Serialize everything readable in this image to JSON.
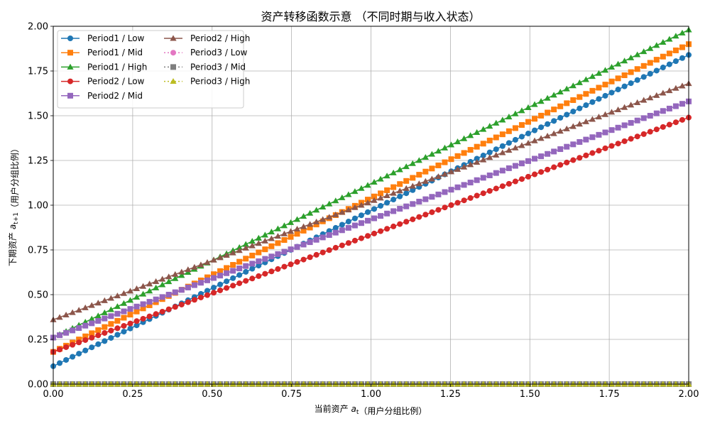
{
  "chart_data": {
    "type": "line",
    "title": "资产转移函数示意 （不同时期与收入状态）",
    "xlabel": "当前资产 a_t（用户分组比例）",
    "ylabel": "下期资产 a_{t+1}（用户分组比例）",
    "xlim": [
      0.0,
      2.0
    ],
    "ylim": [
      0.0,
      2.0
    ],
    "xticks": [
      "0.00",
      "0.25",
      "0.50",
      "0.75",
      "1.00",
      "1.25",
      "1.50",
      "1.75",
      "2.00"
    ],
    "yticks": [
      "0.00",
      "0.25",
      "0.50",
      "0.75",
      "1.00",
      "1.25",
      "1.50",
      "1.75",
      "2.00"
    ],
    "grid": true,
    "legend_position": "top-left",
    "legend_columns": 2,
    "x_range": {
      "start": 0.0,
      "end": 2.0,
      "points": 100
    },
    "series": [
      {
        "name": "Period1 / Low",
        "color": "#1f77b4",
        "marker": "circle",
        "linestyle": "solid",
        "y_at_0": 0.1,
        "y_at_2": 1.84
      },
      {
        "name": "Period1 / Mid",
        "color": "#ff7f0e",
        "marker": "square",
        "linestyle": "solid",
        "y_at_0": 0.18,
        "y_at_2": 1.9
      },
      {
        "name": "Period1 / High",
        "color": "#2ca02c",
        "marker": "triangle",
        "linestyle": "solid",
        "y_at_0": 0.26,
        "y_at_2": 1.98
      },
      {
        "name": "Period2 / Low",
        "color": "#d62728",
        "marker": "circle",
        "linestyle": "solid",
        "y_at_0": 0.18,
        "y_at_2": 1.49
      },
      {
        "name": "Period2 / Mid",
        "color": "#9467bd",
        "marker": "square",
        "linestyle": "solid",
        "y_at_0": 0.26,
        "y_at_2": 1.58
      },
      {
        "name": "Period2 / High",
        "color": "#8c564b",
        "marker": "triangle",
        "linestyle": "solid",
        "y_at_0": 0.36,
        "y_at_2": 1.68
      },
      {
        "name": "Period3 / Low",
        "color": "#e377c2",
        "marker": "circle",
        "linestyle": "dotted",
        "y_at_0": 0.0,
        "y_at_2": 0.0
      },
      {
        "name": "Period3 / Mid",
        "color": "#7f7f7f",
        "marker": "square",
        "linestyle": "dotted",
        "y_at_0": 0.0,
        "y_at_2": 0.0
      },
      {
        "name": "Period3 / High",
        "color": "#bcbd22",
        "marker": "triangle",
        "linestyle": "dotted",
        "y_at_0": 0.0,
        "y_at_2": 0.0
      }
    ]
  }
}
